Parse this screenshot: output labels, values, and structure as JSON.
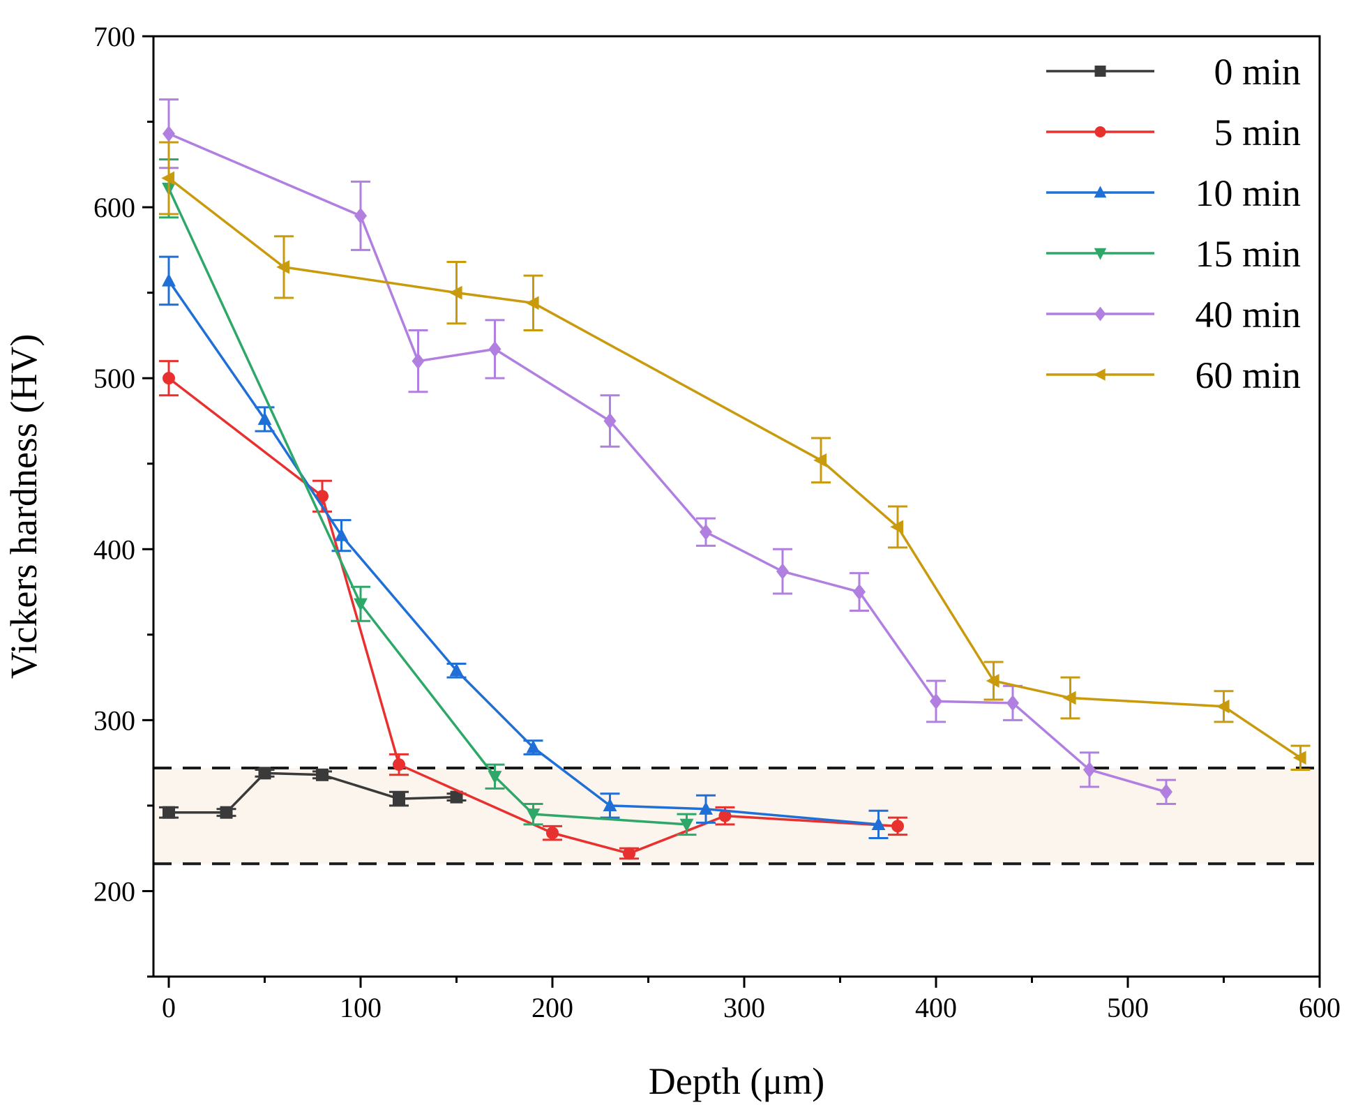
{
  "chart_data": {
    "type": "line",
    "title": "",
    "xlabel": "Depth (μm)",
    "ylabel": "Vickers hardness (HV)",
    "xlim": [
      -8,
      600
    ],
    "ylim": [
      150,
      700
    ],
    "xticks": [
      0,
      100,
      200,
      300,
      400,
      500,
      600
    ],
    "yticks": [
      200,
      300,
      400,
      500,
      600,
      700
    ],
    "xtick_labels": [
      "0",
      "100",
      "200",
      "300",
      "400",
      "500",
      "600"
    ],
    "ytick_labels": [
      "200",
      "300",
      "400",
      "500",
      "600",
      "700"
    ],
    "grid": false,
    "legend_position": "top-right",
    "band": {
      "lower": 216,
      "upper": 272,
      "fill": "#fbf5ee",
      "line_color": "#1a1a1a",
      "line_style": "dashed"
    },
    "series": [
      {
        "name": "0 min",
        "legend_label": "0 min",
        "color": "#3a3a3a",
        "marker": "square",
        "points": [
          {
            "x": 0,
            "y": 246,
            "err": 3
          },
          {
            "x": 30,
            "y": 246,
            "err": 2
          },
          {
            "x": 50,
            "y": 269,
            "err": 2
          },
          {
            "x": 80,
            "y": 268,
            "err": 2
          },
          {
            "x": 120,
            "y": 254,
            "err": 4
          },
          {
            "x": 150,
            "y": 255,
            "err": 2
          }
        ]
      },
      {
        "name": "5 min",
        "legend_label": "5 min",
        "color": "#e8312f",
        "marker": "circle",
        "points": [
          {
            "x": 0,
            "y": 500,
            "err": 10
          },
          {
            "x": 80,
            "y": 431,
            "err": 9
          },
          {
            "x": 120,
            "y": 274,
            "err": 6
          },
          {
            "x": 200,
            "y": 234,
            "err": 4
          },
          {
            "x": 240,
            "y": 222,
            "err": 3
          },
          {
            "x": 290,
            "y": 244,
            "err": 5
          },
          {
            "x": 380,
            "y": 238,
            "err": 5
          }
        ]
      },
      {
        "name": "10 min",
        "legend_label": "10 min",
        "color": "#1f6fd6",
        "marker": "triangle-up",
        "points": [
          {
            "x": 0,
            "y": 557,
            "err": 14
          },
          {
            "x": 50,
            "y": 476,
            "err": 7
          },
          {
            "x": 90,
            "y": 408,
            "err": 9
          },
          {
            "x": 150,
            "y": 329,
            "err": 4
          },
          {
            "x": 190,
            "y": 284,
            "err": 4
          },
          {
            "x": 230,
            "y": 250,
            "err": 7
          },
          {
            "x": 280,
            "y": 248,
            "err": 8
          },
          {
            "x": 370,
            "y": 239,
            "err": 8
          }
        ]
      },
      {
        "name": "15 min",
        "legend_label": "15 min",
        "color": "#2ea868",
        "marker": "triangle-down",
        "points": [
          {
            "x": 0,
            "y": 611,
            "err": 17
          },
          {
            "x": 100,
            "y": 368,
            "err": 10
          },
          {
            "x": 170,
            "y": 267,
            "err": 7
          },
          {
            "x": 190,
            "y": 245,
            "err": 6
          },
          {
            "x": 270,
            "y": 239,
            "err": 6
          }
        ]
      },
      {
        "name": "40 min",
        "legend_label": "40 min",
        "color": "#b07fe0",
        "marker": "diamond",
        "points": [
          {
            "x": 0,
            "y": 643,
            "err": 20
          },
          {
            "x": 100,
            "y": 595,
            "err": 20
          },
          {
            "x": 130,
            "y": 510,
            "err": 18
          },
          {
            "x": 170,
            "y": 517,
            "err": 17
          },
          {
            "x": 230,
            "y": 475,
            "err": 15
          },
          {
            "x": 280,
            "y": 410,
            "err": 8
          },
          {
            "x": 320,
            "y": 387,
            "err": 13
          },
          {
            "x": 360,
            "y": 375,
            "err": 11
          },
          {
            "x": 400,
            "y": 311,
            "err": 12
          },
          {
            "x": 440,
            "y": 310,
            "err": 10
          },
          {
            "x": 480,
            "y": 271,
            "err": 10
          },
          {
            "x": 520,
            "y": 258,
            "err": 7
          }
        ]
      },
      {
        "name": "60 min",
        "legend_label": "60 min",
        "color": "#c99a0c",
        "marker": "triangle-left",
        "points": [
          {
            "x": 0,
            "y": 617,
            "err": 21
          },
          {
            "x": 60,
            "y": 565,
            "err": 18
          },
          {
            "x": 150,
            "y": 550,
            "err": 18
          },
          {
            "x": 190,
            "y": 544,
            "err": 16
          },
          {
            "x": 340,
            "y": 452,
            "err": 13
          },
          {
            "x": 380,
            "y": 413,
            "err": 12
          },
          {
            "x": 430,
            "y": 323,
            "err": 11
          },
          {
            "x": 470,
            "y": 313,
            "err": 12
          },
          {
            "x": 550,
            "y": 308,
            "err": 9
          },
          {
            "x": 590,
            "y": 278,
            "err": 7
          }
        ]
      }
    ]
  }
}
